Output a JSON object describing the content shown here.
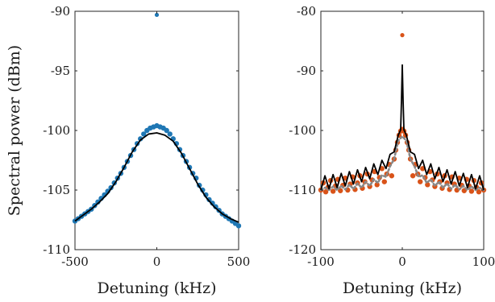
{
  "chart_data": [
    {
      "type": "scatter",
      "xlabel": "Detuning (kHz)",
      "ylabel": "Spectral power (dBm)",
      "xlim": [
        -500,
        500
      ],
      "ylim": [
        -110,
        -90
      ],
      "xticks": [
        -500,
        0,
        500
      ],
      "yticks": [
        -90,
        -95,
        -100,
        -105,
        -110
      ],
      "grid": false,
      "series": [
        {
          "kind": "points",
          "color": "#1f77b4",
          "x": [
            -500,
            -480,
            -460,
            -440,
            -420,
            -400,
            -380,
            -360,
            -340,
            -320,
            -300,
            -280,
            -260,
            -240,
            -220,
            -200,
            -180,
            -160,
            -140,
            -120,
            -100,
            -80,
            -60,
            -40,
            -20,
            0,
            20,
            40,
            60,
            80,
            100,
            120,
            140,
            160,
            180,
            200,
            220,
            240,
            260,
            280,
            300,
            320,
            340,
            360,
            380,
            400,
            420,
            440,
            460,
            480,
            500
          ],
          "y": [
            -107.6,
            -107.4,
            -107.2,
            -107.0,
            -106.8,
            -106.6,
            -106.3,
            -106.0,
            -105.7,
            -105.4,
            -105.1,
            -104.8,
            -104.4,
            -104.0,
            -103.6,
            -103.1,
            -102.6,
            -102.1,
            -101.6,
            -101.1,
            -100.7,
            -100.3,
            -100.0,
            -99.8,
            -99.7,
            -99.6,
            -99.7,
            -99.8,
            -100.0,
            -100.3,
            -100.7,
            -101.1,
            -101.6,
            -102.1,
            -102.6,
            -103.1,
            -103.6,
            -104.0,
            -104.6,
            -105.0,
            -105.4,
            -105.8,
            -106.1,
            -106.4,
            -106.7,
            -107.0,
            -107.2,
            -107.4,
            -107.6,
            -107.8,
            -108.0
          ]
        },
        {
          "kind": "outlier",
          "color": "#1f77b4",
          "x": [
            0
          ],
          "y": [
            -90.3
          ]
        },
        {
          "kind": "fit",
          "color": "#000000",
          "x": [
            -500,
            -450,
            -400,
            -350,
            -300,
            -250,
            -200,
            -150,
            -100,
            -50,
            0,
            50,
            100,
            150,
            200,
            250,
            300,
            350,
            400,
            450,
            500
          ],
          "y": [
            -107.6,
            -107.1,
            -106.6,
            -106.0,
            -105.3,
            -104.3,
            -103.1,
            -101.8,
            -100.8,
            -100.3,
            -100.2,
            -100.4,
            -100.9,
            -101.9,
            -103.2,
            -104.5,
            -105.6,
            -106.4,
            -107.0,
            -107.4,
            -107.7
          ]
        }
      ]
    },
    {
      "type": "scatter",
      "xlabel": "Detuning (kHz)",
      "ylabel": "",
      "xlim": [
        -100,
        100
      ],
      "ylim": [
        -120,
        -80
      ],
      "xticks": [
        -100,
        0,
        100
      ],
      "yticks": [
        -80,
        -90,
        -100,
        -110,
        -120
      ],
      "grid": false,
      "series": [
        {
          "kind": "points",
          "color": "#d95319",
          "x": [
            -100,
            -97,
            -94,
            -91,
            -88,
            -85,
            -82,
            -79,
            -76,
            -73,
            -70,
            -67,
            -64,
            -61,
            -58,
            -55,
            -52,
            -49,
            -46,
            -43,
            -40,
            -37,
            -34,
            -31,
            -28,
            -25,
            -22,
            -19,
            -16,
            -13,
            -10,
            -8,
            -6,
            -4,
            -2,
            0,
            2,
            4,
            6,
            8,
            10,
            13,
            16,
            19,
            22,
            25,
            28,
            31,
            34,
            37,
            40,
            43,
            46,
            49,
            52,
            55,
            58,
            61,
            64,
            67,
            70,
            73,
            76,
            79,
            82,
            85,
            88,
            91,
            94,
            97,
            100
          ],
          "y": [
            -110.0,
            -108.8,
            -110.3,
            -109.5,
            -108.4,
            -110.2,
            -109.3,
            -108.2,
            -110.1,
            -109.2,
            -108.0,
            -110.0,
            -109.0,
            -107.8,
            -109.9,
            -108.8,
            -107.6,
            -109.7,
            -108.6,
            -107.3,
            -109.4,
            -108.3,
            -106.9,
            -109.1,
            -107.9,
            -106.4,
            -108.6,
            -107.3,
            -105.7,
            -107.6,
            -104.8,
            -103.3,
            -102.0,
            -100.8,
            -100.1,
            -99.8,
            -100.1,
            -100.8,
            -102.0,
            -103.3,
            -104.8,
            -107.6,
            -105.7,
            -107.3,
            -108.6,
            -106.4,
            -107.9,
            -109.1,
            -106.9,
            -108.3,
            -109.4,
            -107.3,
            -108.6,
            -109.7,
            -107.6,
            -108.8,
            -109.9,
            -107.8,
            -109.0,
            -110.0,
            -108.0,
            -109.2,
            -110.1,
            -108.2,
            -109.3,
            -110.2,
            -108.4,
            -109.5,
            -110.3,
            -108.8,
            -110.0
          ]
        },
        {
          "kind": "outlier",
          "color": "#d95319",
          "x": [
            0
          ],
          "y": [
            -84.0
          ]
        },
        {
          "kind": "model-dotted",
          "color": "#888888",
          "x": [
            -100,
            -95,
            -90,
            -85,
            -80,
            -75,
            -70,
            -65,
            -60,
            -55,
            -50,
            -45,
            -40,
            -35,
            -30,
            -25,
            -20,
            -15,
            -10,
            -5,
            0,
            5,
            10,
            15,
            20,
            25,
            30,
            35,
            40,
            45,
            50,
            55,
            60,
            65,
            70,
            75,
            80,
            85,
            90,
            95,
            100
          ],
          "y": [
            -110.0,
            -109.6,
            -110.0,
            -109.4,
            -110.0,
            -109.3,
            -109.9,
            -109.1,
            -109.8,
            -108.9,
            -109.6,
            -108.6,
            -109.3,
            -108.2,
            -108.8,
            -107.5,
            -107.8,
            -106.0,
            -104.8,
            -101.7,
            -101.0,
            -101.7,
            -104.8,
            -106.0,
            -107.8,
            -107.5,
            -108.8,
            -108.2,
            -109.3,
            -108.6,
            -109.6,
            -108.9,
            -109.8,
            -109.1,
            -109.9,
            -109.3,
            -110.0,
            -109.4,
            -110.0,
            -109.6,
            -110.0
          ]
        },
        {
          "kind": "model-solid",
          "color": "#000000",
          "x": [
            -100,
            -95,
            -90,
            -85,
            -80,
            -75,
            -70,
            -65,
            -60,
            -55,
            -50,
            -45,
            -40,
            -35,
            -30,
            -25,
            -20,
            -15,
            -10,
            -5,
            -2,
            -1,
            0,
            1,
            2,
            5,
            10,
            15,
            20,
            25,
            30,
            35,
            40,
            45,
            50,
            55,
            60,
            65,
            70,
            75,
            80,
            85,
            90,
            95,
            100
          ],
          "y": [
            -110.0,
            -107.6,
            -109.8,
            -107.4,
            -109.6,
            -107.2,
            -109.3,
            -106.9,
            -109.0,
            -106.6,
            -108.6,
            -106.2,
            -108.1,
            -105.6,
            -107.4,
            -105.0,
            -106.4,
            -104.0,
            -103.6,
            -100.8,
            -99.9,
            -95.0,
            -89.0,
            -95.0,
            -99.9,
            -100.8,
            -103.6,
            -104.0,
            -106.4,
            -105.0,
            -107.4,
            -105.6,
            -108.1,
            -106.2,
            -108.6,
            -106.6,
            -109.0,
            -106.9,
            -109.3,
            -107.2,
            -109.6,
            -107.4,
            -109.8,
            -107.6,
            -110.0
          ]
        }
      ]
    }
  ]
}
